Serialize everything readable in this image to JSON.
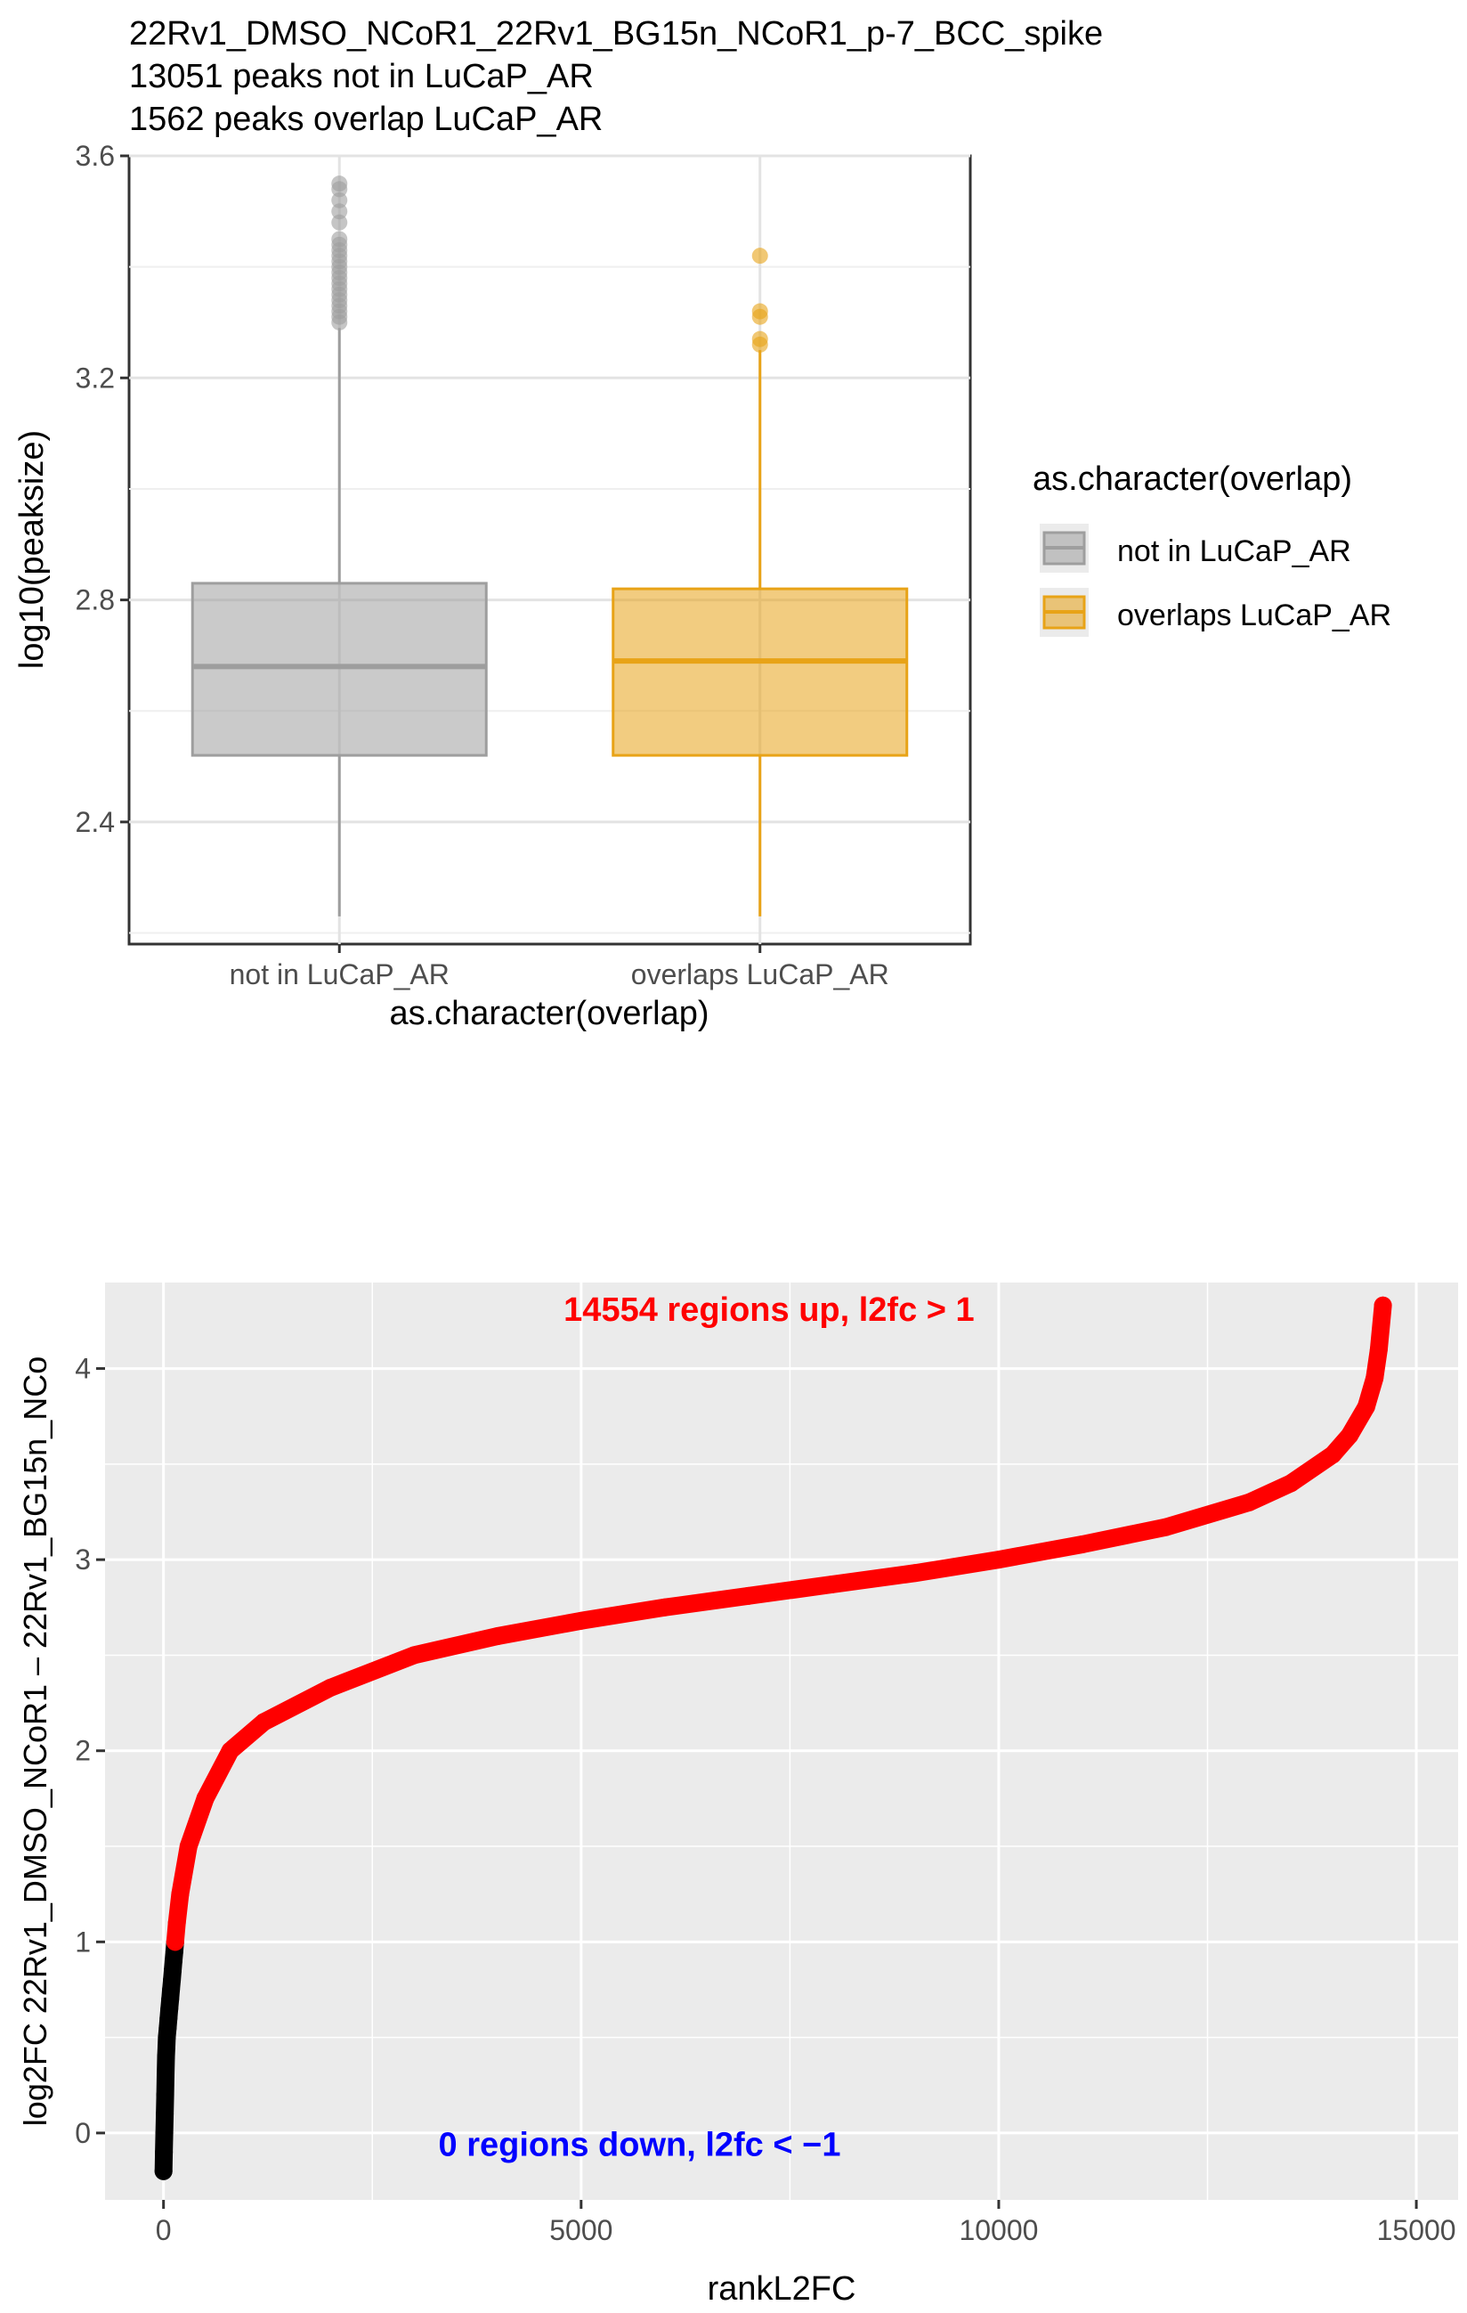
{
  "chart_data": [
    {
      "type": "boxplot",
      "title_lines": [
        "22Rv1_DMSO_NCoR1_22Rv1_BG15n_NCoR1_p-7_BCC_spike",
        "13051 peaks not in LuCaP_AR",
        "1562 peaks overlap LuCaP_AR"
      ],
      "xlabel": "as.character(overlap)",
      "ylabel": "log10(peaksize)",
      "ylim": [
        2.18,
        3.6
      ],
      "yticks": [
        "2.4",
        "2.8",
        "3.2",
        "3.6"
      ],
      "ytick_values": [
        2.4,
        2.8,
        3.2,
        3.6
      ],
      "grid": true,
      "legend": {
        "title": "as.character(overlap)",
        "placement": "right",
        "entries": [
          "not in LuCaP_AR",
          "overlaps LuCaP_AR"
        ]
      },
      "colors": {
        "not_in": "#9e9e9e",
        "overlaps": "#e8a317"
      },
      "categories": [
        "not in LuCaP_AR",
        "overlaps LuCaP_AR"
      ],
      "boxes": [
        {
          "name": "not in LuCaP_AR",
          "min": 2.23,
          "q1": 2.52,
          "median": 2.68,
          "q3": 2.83,
          "max": 3.29,
          "outliers": [
            3.3,
            3.31,
            3.32,
            3.33,
            3.34,
            3.35,
            3.36,
            3.37,
            3.38,
            3.39,
            3.4,
            3.41,
            3.42,
            3.43,
            3.44,
            3.45,
            3.48,
            3.5,
            3.52,
            3.54,
            3.55
          ]
        },
        {
          "name": "overlaps LuCaP_AR",
          "min": 2.23,
          "q1": 2.52,
          "median": 2.69,
          "q3": 2.82,
          "max": 3.25,
          "outliers": [
            3.26,
            3.27,
            3.31,
            3.32,
            3.42
          ]
        }
      ]
    },
    {
      "type": "scatter",
      "xlabel": "rankL2FC",
      "ylabel": "log2FC  22Rv1_DMSO_NCoR1  –  22Rv1_BG15n_NCo",
      "xlim": [
        -700,
        15500
      ],
      "ylim": [
        -0.35,
        4.45
      ],
      "xticks": [
        "0",
        "5000",
        "10000",
        "15000"
      ],
      "xtick_values": [
        0,
        5000,
        10000,
        15000
      ],
      "yticks": [
        "0",
        "1",
        "2",
        "3",
        "4"
      ],
      "ytick_values": [
        0,
        1,
        2,
        3,
        4
      ],
      "grid": true,
      "colors": {
        "up": "#ff0000",
        "other": "#000000",
        "up_label": "#ff0000",
        "down_label": "#0000ff"
      },
      "annotations": {
        "up": "14554  regions up, l2fc > 1",
        "down": "0  regions down, l2fc < −1"
      },
      "annotation_positions": {
        "up": {
          "x": 7250,
          "y": 4.25
        },
        "down": {
          "x": 5700,
          "y": -0.12
        }
      },
      "series": [
        {
          "color": "#000000",
          "x": [
            0,
            5,
            10,
            15,
            20,
            25,
            30,
            35,
            40,
            50,
            60,
            70,
            80,
            90,
            100,
            110,
            120,
            130,
            140
          ],
          "y": [
            -0.2,
            -0.1,
            0.0,
            0.1,
            0.2,
            0.3,
            0.4,
            0.45,
            0.5,
            0.55,
            0.6,
            0.65,
            0.7,
            0.75,
            0.8,
            0.85,
            0.9,
            0.95,
            1.0
          ]
        },
        {
          "color": "#ff0000",
          "x": [
            140,
            160,
            200,
            300,
            500,
            800,
            1200,
            2000,
            3000,
            4000,
            5000,
            6000,
            7000,
            8000,
            9000,
            10000,
            11000,
            12000,
            13000,
            13500,
            14000,
            14200,
            14400,
            14500,
            14550,
            14600
          ],
          "y": [
            1.0,
            1.1,
            1.25,
            1.5,
            1.75,
            2.0,
            2.15,
            2.33,
            2.5,
            2.6,
            2.68,
            2.75,
            2.81,
            2.87,
            2.93,
            3.0,
            3.08,
            3.17,
            3.3,
            3.4,
            3.55,
            3.65,
            3.8,
            3.95,
            4.1,
            4.33
          ]
        }
      ]
    }
  ]
}
